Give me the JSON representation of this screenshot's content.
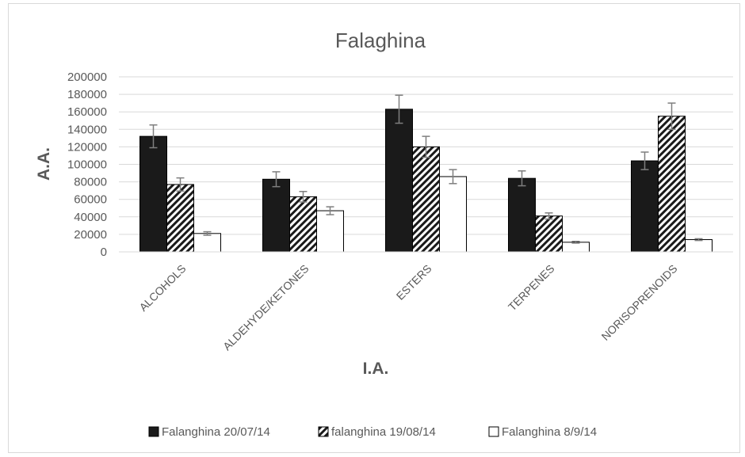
{
  "chart_data": {
    "type": "bar",
    "title": "Falaghina",
    "xlabel": "I.A.",
    "ylabel": "A.A.",
    "ylim": [
      0,
      200000
    ],
    "yticks": [
      0,
      20000,
      40000,
      60000,
      80000,
      100000,
      120000,
      140000,
      160000,
      180000,
      200000
    ],
    "grid": true,
    "legend_position": "bottom",
    "categories": [
      "ALCOHOLS",
      "ALDEHYDE/KETONES",
      "ESTERS",
      "TERPENES",
      "NORISOPRENOIDS"
    ],
    "series": [
      {
        "name": "Falanghina 20/07/14",
        "style": "solid",
        "color": "#222222",
        "values": [
          132000,
          83000,
          163000,
          84000,
          104000
        ],
        "errors": [
          13000,
          8500,
          16000,
          8500,
          10000
        ]
      },
      {
        "name": "falanghina 19/08/14",
        "style": "hatched",
        "color": "#222222",
        "values": [
          77000,
          63000,
          120000,
          41000,
          155000
        ],
        "errors": [
          7500,
          6000,
          12000,
          3500,
          15000
        ]
      },
      {
        "name": "Falanghina 8/9/14",
        "style": "white",
        "color": "#ffffff",
        "values": [
          21000,
          47000,
          86000,
          11000,
          14000
        ],
        "errors": [
          2000,
          4500,
          8000,
          1000,
          1000
        ]
      }
    ]
  }
}
